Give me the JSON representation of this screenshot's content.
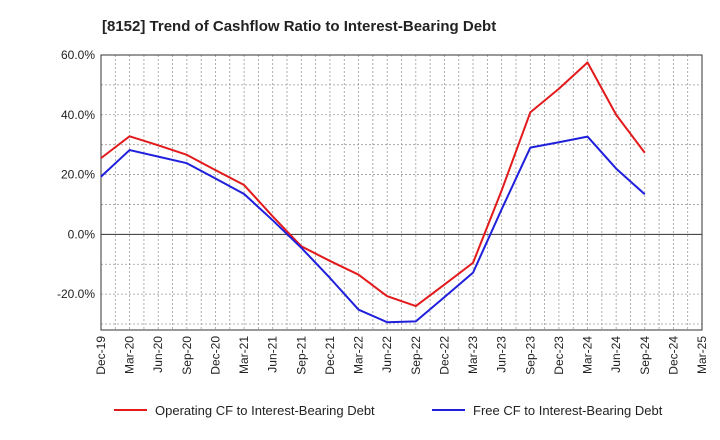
{
  "chart_data": {
    "type": "line",
    "title": "[8152]  Trend of Cashflow Ratio to Interest-Bearing Debt",
    "xlabel": "",
    "ylabel": "",
    "x": [
      "Dec-19",
      "Mar-20",
      "Jun-20",
      "Sep-20",
      "Dec-20",
      "Mar-21",
      "Jun-21",
      "Sep-21",
      "Dec-21",
      "Mar-22",
      "Jun-22",
      "Sep-22",
      "Dec-22",
      "Mar-23",
      "Jun-23",
      "Sep-23",
      "Dec-23",
      "Mar-24",
      "Jun-24",
      "Sep-24",
      "Dec-24",
      "Mar-25"
    ],
    "ylim": [
      -32,
      60
    ],
    "yticks": [
      60,
      40,
      20,
      0,
      -20
    ],
    "ytick_labels": [
      "60.0%",
      "40.0%",
      "20.0%",
      "0.0%",
      "-20.0%"
    ],
    "grid": true,
    "legend_position": "bottom",
    "series": [
      {
        "name": "Operating CF to Interest-Bearing Debt",
        "color": "#e31a1c",
        "values": [
          25.5,
          32.8,
          29.8,
          26.6,
          21.5,
          16.5,
          6.0,
          -4.0,
          -8.9,
          -13.5,
          -20.7,
          -24.0,
          -16.8,
          -9.5,
          14.7,
          40.8,
          48.7,
          57.5,
          40.0,
          27.3,
          null,
          null
        ]
      },
      {
        "name": "Free CF to Interest-Bearing Debt",
        "color": "#1f1fdc",
        "values": [
          19.3,
          28.2,
          26.0,
          23.8,
          18.7,
          13.5,
          4.7,
          -4.5,
          -14.6,
          -25.2,
          -29.4,
          -29.1,
          -21.0,
          -12.8,
          8.4,
          29.0,
          30.8,
          32.7,
          22.0,
          13.4,
          null,
          null
        ]
      }
    ]
  }
}
